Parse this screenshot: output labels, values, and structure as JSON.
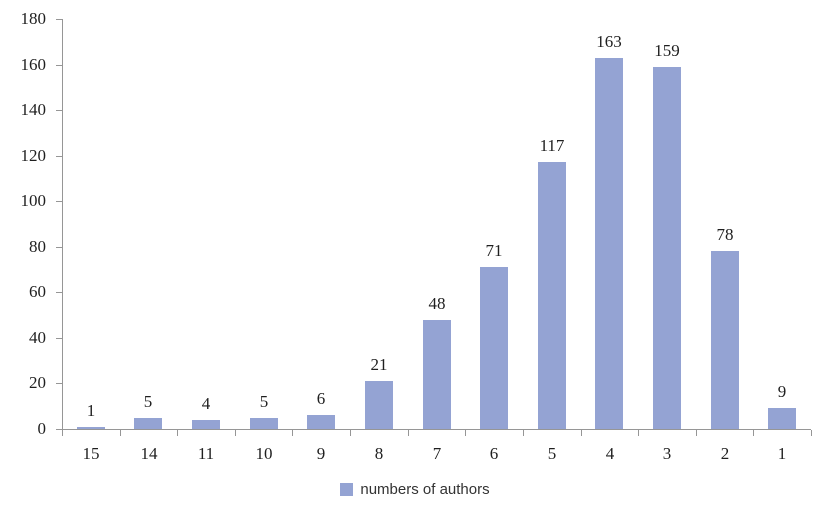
{
  "chart_data": {
    "type": "bar",
    "title": "",
    "xlabel": "",
    "ylabel": "",
    "categories": [
      "15",
      "14",
      "11",
      "10",
      "9",
      "8",
      "7",
      "6",
      "5",
      "4",
      "3",
      "2",
      "1"
    ],
    "values": [
      1,
      5,
      4,
      5,
      6,
      21,
      48,
      71,
      117,
      163,
      159,
      78,
      9
    ],
    "series": [
      {
        "name": "numbers of authors",
        "values": [
          1,
          5,
          4,
          5,
          6,
          21,
          48,
          71,
          117,
          163,
          159,
          78,
          9
        ]
      }
    ],
    "ylim": [
      0,
      180
    ],
    "yticks": [
      0,
      20,
      40,
      60,
      80,
      100,
      120,
      140,
      160,
      180
    ],
    "grid": false,
    "data_labels_shown": true,
    "legend_position": "bottom",
    "legend_label": "numbers of authors",
    "colors": {
      "bar": "#94A3D3",
      "axis": "#969696",
      "text": "#1F1F1F",
      "legend_text": "#333333",
      "background": "#FFFFFF"
    }
  }
}
